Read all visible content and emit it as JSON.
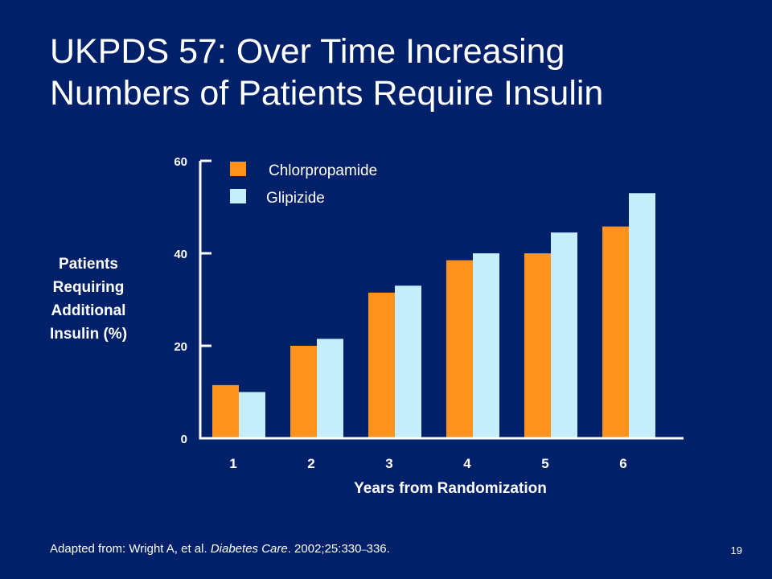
{
  "slide": {
    "title_line1": "UKPDS 57: Over Time Increasing",
    "title_line2": "Numbers of Patients Require Insulin",
    "ylabel_lines": [
      "Patients",
      "Requiring",
      "Additional",
      "Insulin (%)"
    ],
    "footer_prefix": "Adapted from: Wright A, et al.",
    "footer_journal": "Diabetes Care",
    "footer_suffix": ". 2002;25:330",
    "footer_dash": "–",
    "footer_end": "336.",
    "page_number": "19"
  },
  "chart_data": {
    "type": "bar",
    "title": "",
    "xlabel": "Years from Randomization",
    "ylabel": "Patients Requiring Additional Insulin (%)",
    "categories": [
      "1",
      "2",
      "3",
      "4",
      "5",
      "6"
    ],
    "series": [
      {
        "name": "Chlorpropamide",
        "color": "#ff931e",
        "values": [
          11.5,
          20,
          31.5,
          38.5,
          40,
          45.8
        ]
      },
      {
        "name": "Glipizide",
        "color": "#c6eefa",
        "values": [
          10,
          21.5,
          33,
          40,
          44.5,
          53
        ]
      }
    ],
    "ylim": [
      0,
      60
    ],
    "yticks": [
      0,
      20,
      40,
      60
    ],
    "legend_position": "top-left",
    "grid": false
  }
}
